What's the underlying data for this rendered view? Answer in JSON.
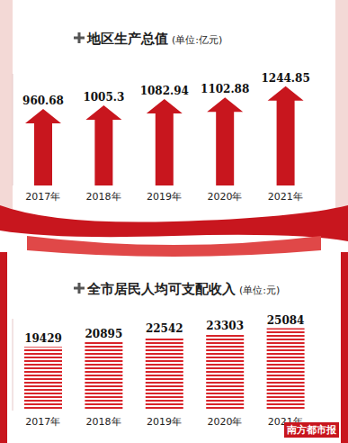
{
  "chart_data": [
    {
      "type": "bar",
      "title": "地区生产总值",
      "subtitle": "(单位:亿元)",
      "categories": [
        "2017年",
        "2018年",
        "2019年",
        "2020年",
        "2021年"
      ],
      "values": [
        960.68,
        1005.3,
        1082.94,
        1102.88,
        1244.85
      ],
      "color": "#c8161e",
      "marker": "arrow",
      "ylim": [
        0,
        1400
      ],
      "data_labels": true,
      "tick_labels": "x",
      "grid": false
    },
    {
      "type": "bar",
      "title": "全市居民人均可支配收入",
      "subtitle": "(单位:元)",
      "categories": [
        "2017年",
        "2018年",
        "2019年",
        "2020年",
        "2021年"
      ],
      "values": [
        19429,
        20895,
        22542,
        23303,
        25084
      ],
      "color": "#d8242a",
      "marker": "striped",
      "ylim": [
        0,
        28000
      ],
      "data_labels": true,
      "tick_labels": "x",
      "grid": false,
      "annotation": "南方都市报"
    }
  ]
}
